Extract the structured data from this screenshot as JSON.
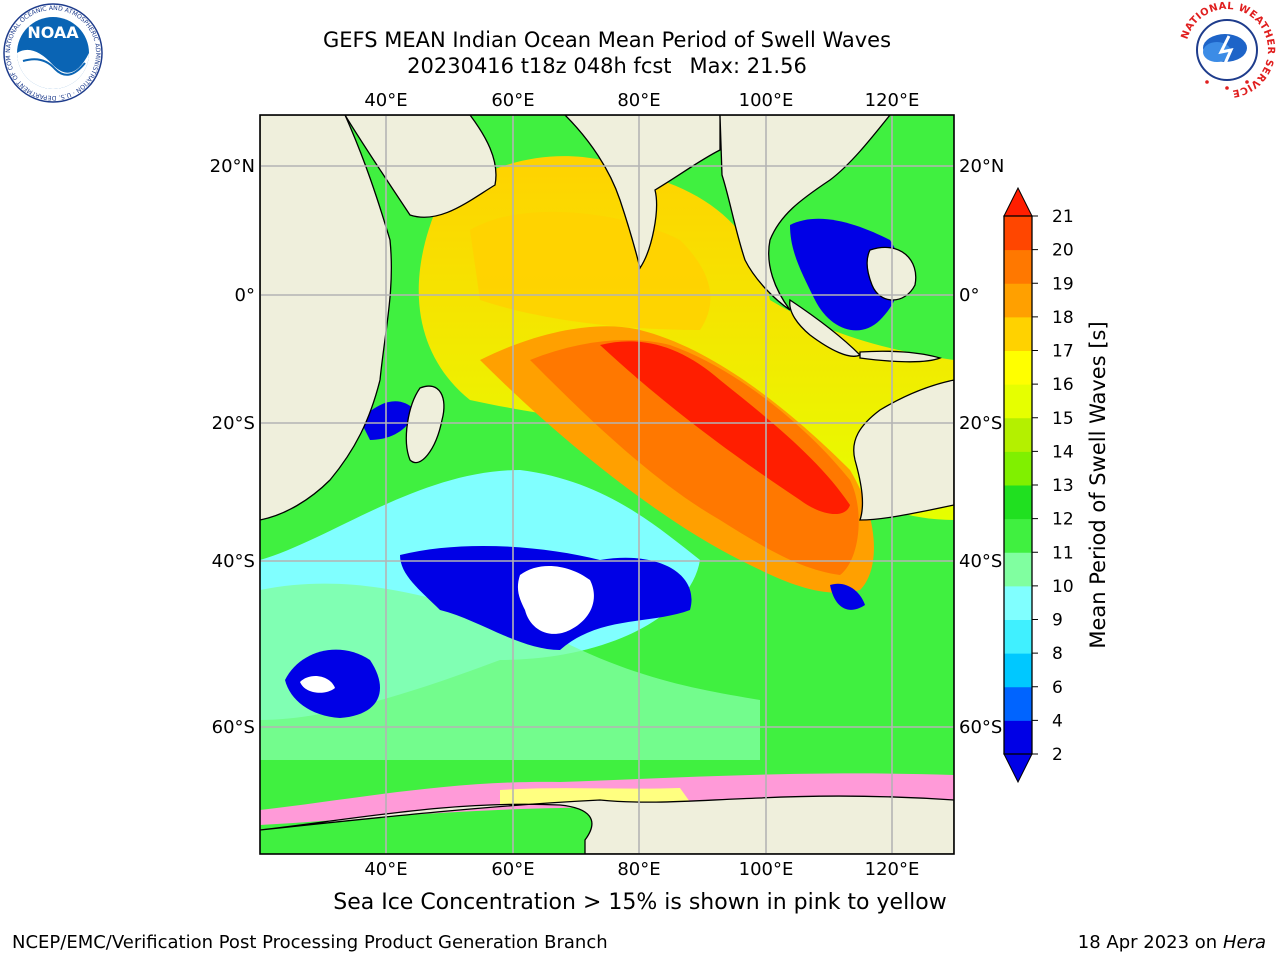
{
  "title": {
    "line1": "GEFS MEAN Indian Ocean Mean Period of Swell Waves",
    "run": "20230416 t18z 048h fcst",
    "max_label": "Max: 21.56"
  },
  "map": {
    "lon_labels": [
      "40°E",
      "60°E",
      "80°E",
      "100°E",
      "120°E"
    ],
    "lat_labels": [
      "20°N",
      "0°",
      "20°S",
      "40°S",
      "60°S"
    ],
    "colors": {
      "land": "#efefdc",
      "ice": "#ffffff",
      "gridline": "#b4b4b4",
      "coast": "#000000"
    }
  },
  "colorbar": {
    "label": "Mean Period of Swell Waves [s]",
    "tick_labels": [
      "2",
      "4",
      "6",
      "8",
      "9",
      "10",
      "11",
      "12",
      "13",
      "14",
      "15",
      "16",
      "17",
      "18",
      "19",
      "20",
      "21"
    ],
    "colors": [
      "#0000e6",
      "#0064ff",
      "#00c8ff",
      "#40f0ff",
      "#80ffff",
      "#80ffa0",
      "#40f040",
      "#20e020",
      "#80f000",
      "#b4f000",
      "#e6ff00",
      "#ffff00",
      "#ffd200",
      "#ffa000",
      "#ff7800",
      "#ff4600",
      "#ff1e00"
    ],
    "extend_min_color": "#0000e6",
    "extend_max_color": "#ff1e00"
  },
  "footer": {
    "sea_ice_note": "Sea Ice Concentration > 15% is shown in pink to yellow",
    "credit": "NCEP/EMC/Verification Post Processing Product Generation Branch",
    "date": "18 Apr 2023 on",
    "machine": "Hera"
  },
  "logos": {
    "noaa": {
      "text": "NOAA",
      "ring_text": "NATIONAL OCEANIC AND ATMOSPHERIC ADMINISTRATION · U.S. DEPARTMENT OF COMMERCE"
    },
    "nws": {
      "ring_text": "NATIONAL WEATHER SERVICE"
    }
  }
}
